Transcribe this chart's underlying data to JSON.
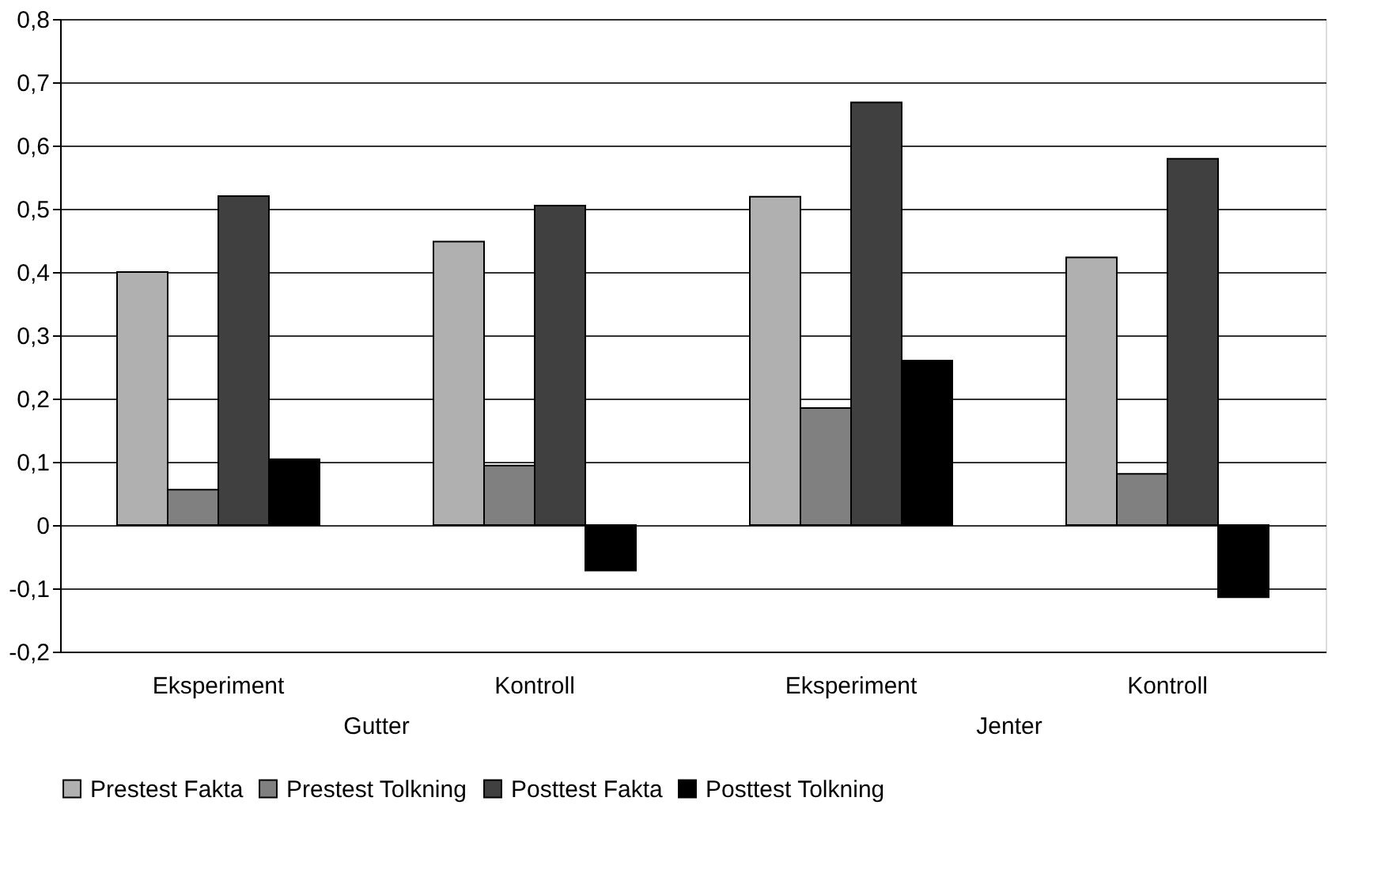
{
  "chart_data": {
    "type": "bar",
    "categories": [
      "Eksperiment",
      "Kontroll",
      "Eksperiment",
      "Kontroll"
    ],
    "series": [
      {
        "name": "Prestest Fakta",
        "color": "#b0b0b0",
        "values": [
          0.4,
          0.448,
          0.519,
          0.423
        ]
      },
      {
        "name": "Prestest Tolkning",
        "color": "#808080",
        "values": [
          0.056,
          0.094,
          0.185,
          0.081
        ]
      },
      {
        "name": "Posttest Fakta",
        "color": "#404040",
        "values": [
          0.52,
          0.505,
          0.668,
          0.579
        ]
      },
      {
        "name": "Posttest Tolkning",
        "color": "#000000",
        "values": [
          0.104,
          -0.072,
          0.26,
          -0.114
        ]
      }
    ],
    "ylim": [
      -0.2,
      0.8
    ],
    "yticks": [
      {
        "value": -0.2,
        "label": "-0,2"
      },
      {
        "value": -0.1,
        "label": "-0,1"
      },
      0,
      {
        "value": 0.1,
        "label": "0,1"
      },
      {
        "value": 0.2,
        "label": "0,2"
      },
      {
        "value": 0.3,
        "label": "0,3"
      },
      {
        "value": 0.4,
        "label": "0,4"
      },
      {
        "value": 0.5,
        "label": "0,5"
      },
      {
        "value": 0.6,
        "label": "0,6"
      },
      {
        "value": 0.7,
        "label": "0,7"
      },
      {
        "value": 0.8,
        "label": "0,8"
      }
    ],
    "annotations": [
      "Gutter",
      "Jenter"
    ],
    "grid": "y",
    "legend": "bottom"
  }
}
